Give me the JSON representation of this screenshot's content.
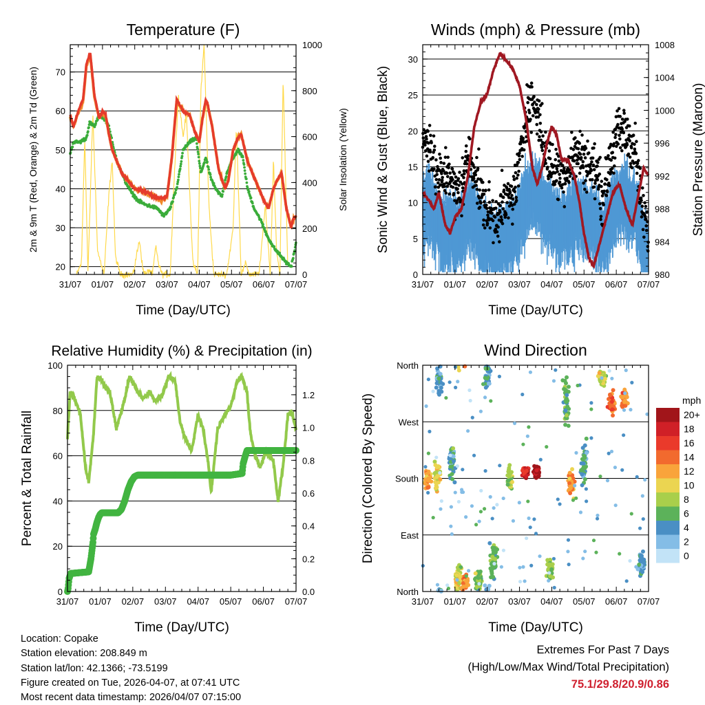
{
  "colors": {
    "temp2m": "#e53b2c",
    "temp9m": "#f08a2a",
    "dewpoint": "#3aac3a",
    "solar": "#ffd94a",
    "wind": "#4f98d4",
    "gust": "#000000",
    "pressure": "#a01822",
    "rh": "#92c94b",
    "rain": "#42b441",
    "extremes": "#cf1f2e"
  },
  "x_ticks": [
    "31/07",
    "01/07",
    "02/07",
    "03/07",
    "04/07",
    "05/07",
    "06/07",
    "07/07"
  ],
  "chart_data": [
    {
      "id": "temperature",
      "type": "line",
      "title": "Temperature (F)",
      "xlabel": "Time (Day/UTC)",
      "ylabel": "2m & 9m T (Red, Orange) & 2m Td (Green)",
      "y2label": "Solar Insolation (Yellow)",
      "xlim": [
        0,
        7
      ],
      "ylim": [
        18,
        77
      ],
      "yticks": [
        20,
        30,
        40,
        50,
        60,
        70
      ],
      "y2lim": [
        0,
        1000
      ],
      "y2ticks": [
        0,
        200,
        400,
        600,
        800,
        1000
      ],
      "series": [
        {
          "name": "2m T",
          "axis": "left",
          "x": [
            0,
            0.1,
            0.25,
            0.4,
            0.5,
            0.62,
            0.75,
            0.9,
            1.0,
            1.1,
            1.2,
            1.3,
            1.45,
            1.6,
            1.8,
            2.0,
            2.2,
            2.4,
            2.6,
            2.8,
            3.0,
            3.15,
            3.3,
            3.5,
            3.7,
            3.85,
            4.0,
            4.1,
            4.2,
            4.25,
            4.4,
            4.6,
            4.8,
            4.9,
            5.05,
            5.2,
            5.3,
            5.5,
            5.7,
            5.85,
            6.0,
            6.15,
            6.3,
            6.4,
            6.55,
            6.7,
            6.85,
            6.9,
            7.0
          ],
          "values": [
            59,
            56,
            60,
            63,
            72,
            75,
            64,
            58,
            60,
            59,
            54,
            50,
            47,
            44,
            42,
            40,
            39.5,
            39,
            38,
            37.5,
            38,
            48,
            63,
            60,
            59,
            55,
            52,
            58,
            63,
            62,
            56,
            45,
            40,
            42,
            50,
            53,
            54,
            47,
            43,
            40,
            37,
            35,
            40,
            42,
            44,
            35,
            30,
            32,
            33
          ]
        },
        {
          "name": "9m T",
          "axis": "left",
          "x": [
            0,
            0.1,
            0.25,
            0.4,
            0.5,
            0.62,
            0.75,
            0.9,
            1.0,
            1.1,
            1.2,
            1.3,
            1.45,
            1.6,
            1.8,
            2.0,
            2.2,
            2.4,
            2.6,
            2.8,
            3.0,
            3.15,
            3.3,
            3.5,
            3.7,
            3.85,
            4.0,
            4.1,
            4.2,
            4.25,
            4.4,
            4.6,
            4.8,
            4.9,
            5.05,
            5.2,
            5.3,
            5.5,
            5.7,
            5.85,
            6.0,
            6.15,
            6.3,
            6.4,
            6.55,
            6.7,
            6.85,
            6.9,
            7.0
          ],
          "values": [
            58.5,
            56,
            59.5,
            62.5,
            71.5,
            74.5,
            63.5,
            58,
            59.5,
            58.5,
            54,
            50,
            47,
            44,
            42,
            40,
            39.5,
            38.8,
            38,
            37,
            38,
            48,
            62.5,
            60,
            59,
            55,
            52,
            58,
            62.5,
            62,
            56,
            45,
            40,
            42,
            50,
            53,
            54,
            47,
            43,
            40,
            37,
            35,
            40,
            42,
            44,
            35,
            30,
            32,
            33
          ]
        },
        {
          "name": "2m Td",
          "axis": "left",
          "x": [
            0,
            0.1,
            0.3,
            0.5,
            0.6,
            0.75,
            0.9,
            1.05,
            1.2,
            1.35,
            1.5,
            1.7,
            1.9,
            2.1,
            2.3,
            2.5,
            2.7,
            2.9,
            3.1,
            3.3,
            3.5,
            3.7,
            3.9,
            4.05,
            4.2,
            4.35,
            4.5,
            4.7,
            4.85,
            5.0,
            5.2,
            5.35,
            5.5,
            5.7,
            5.9,
            6.1,
            6.3,
            6.5,
            6.7,
            6.85,
            7.0
          ],
          "values": [
            49,
            52,
            52,
            53,
            57,
            56,
            59,
            58,
            56,
            50,
            46,
            42,
            39,
            37,
            36,
            35.5,
            35,
            33,
            35,
            40,
            50,
            52,
            53,
            44,
            48,
            43,
            40,
            38,
            44,
            47,
            50,
            48,
            40,
            35,
            32,
            28,
            25,
            23,
            21,
            20,
            26
          ]
        },
        {
          "name": "Solar Insolation",
          "axis": "right",
          "x": [
            0.2,
            0.35,
            0.45,
            0.55,
            0.7,
            0.85,
            1.05,
            1.2,
            1.3,
            1.4,
            1.55,
            1.95,
            2.05,
            2.15,
            2.25,
            2.35,
            2.45,
            2.55,
            2.65,
            2.75,
            2.85,
            3.1,
            3.2,
            3.35,
            3.5,
            3.6,
            3.8,
            3.95,
            4.05,
            4.15,
            4.3,
            4.45,
            4.85,
            5.05,
            5.15,
            5.3,
            5.45,
            5.55,
            5.85,
            6.05,
            6.2,
            6.3,
            6.4,
            6.5,
            6.6,
            6.75
          ],
          "values": [
            0,
            50,
            600,
            0,
            700,
            100,
            0,
            350,
            500,
            80,
            0,
            0,
            80,
            150,
            20,
            0,
            20,
            0,
            120,
            40,
            0,
            0,
            350,
            780,
            600,
            700,
            50,
            0,
            800,
            1000,
            300,
            0,
            0,
            200,
            650,
            0,
            50,
            0,
            0,
            300,
            0,
            500,
            100,
            0,
            850,
            0
          ]
        }
      ]
    },
    {
      "id": "winds",
      "type": "scatter",
      "title": "Winds (mph) & Pressure (mb)",
      "xlabel": "Time (Day/UTC)",
      "ylabel": "Sonic Wind & Gust (Blue, Black)",
      "y2label": "Station Pressure (Maroon)",
      "xlim": [
        0,
        7
      ],
      "ylim": [
        0,
        32
      ],
      "yticks": [
        0,
        5,
        10,
        15,
        20,
        25,
        30
      ],
      "y2lim": [
        980,
        1008
      ],
      "y2ticks": [
        980,
        984,
        988,
        992,
        996,
        1000,
        1004,
        1008
      ],
      "series": [
        {
          "name": "Gust",
          "axis": "left",
          "x": [
            0,
            0.2,
            0.4,
            0.6,
            0.8,
            1.0,
            1.2,
            1.4,
            1.6,
            1.8,
            2.0,
            2.2,
            2.4,
            2.6,
            2.8,
            3.0,
            3.2,
            3.4,
            3.6,
            3.8,
            4.0,
            4.2,
            4.4,
            4.6,
            4.8,
            5.0,
            5.2,
            5.4,
            5.6,
            5.8,
            6.0,
            6.2,
            6.4,
            6.6,
            6.8,
            7.0
          ],
          "values": [
            18,
            19,
            14,
            13,
            15,
            11,
            12,
            16,
            15,
            11,
            9,
            8,
            9,
            10,
            11,
            15,
            23,
            24,
            22,
            17,
            15,
            14,
            14,
            16,
            17,
            16,
            15,
            14,
            10,
            16,
            19,
            20,
            19,
            17,
            9,
            6
          ]
        },
        {
          "name": "Sonic Wind",
          "axis": "left",
          "x": [
            0,
            0.2,
            0.4,
            0.6,
            0.8,
            1.0,
            1.2,
            1.4,
            1.6,
            1.8,
            2.0,
            2.2,
            2.4,
            2.6,
            2.8,
            3.0,
            3.2,
            3.4,
            3.6,
            3.8,
            4.0,
            4.2,
            4.4,
            4.6,
            4.8,
            5.0,
            5.2,
            5.4,
            5.6,
            5.8,
            6.0,
            6.2,
            6.4,
            6.6,
            6.8,
            7.0
          ],
          "values": [
            9,
            10,
            8,
            6,
            7,
            6,
            6,
            9,
            8,
            6,
            5,
            4,
            5,
            5,
            6,
            8,
            11,
            12,
            11,
            9,
            8,
            7,
            7,
            8,
            9,
            8,
            8,
            7,
            5,
            8,
            10,
            11,
            10,
            9,
            5,
            3
          ]
        },
        {
          "name": "Station Pressure",
          "axis": "right",
          "x": [
            0,
            0.2,
            0.35,
            0.5,
            0.7,
            0.85,
            1.0,
            1.2,
            1.4,
            1.6,
            1.8,
            2.0,
            2.2,
            2.4,
            2.6,
            2.8,
            3.0,
            3.2,
            3.4,
            3.55,
            3.7,
            3.85,
            4.0,
            4.15,
            4.3,
            4.5,
            4.7,
            4.85,
            5.0,
            5.15,
            5.3,
            5.5,
            5.7,
            5.9,
            6.1,
            6.3,
            6.5,
            6.7,
            6.85,
            7.0
          ],
          "values": [
            990,
            989,
            988,
            990,
            986,
            985,
            987,
            988,
            992,
            998,
            1001,
            1002,
            1005,
            1007,
            1006,
            1005,
            1003,
            999,
            993,
            991,
            993,
            996,
            998,
            997,
            994,
            994,
            992,
            989,
            985,
            982,
            981,
            984,
            987,
            990,
            991,
            988,
            986,
            990,
            993,
            992
          ]
        }
      ]
    },
    {
      "id": "humidity",
      "type": "line",
      "title": "Relative Humidity (%) & Precipitation (in)",
      "xlabel": "Time (Day/UTC)",
      "ylabel": "Percent & Total Rainfall",
      "xlim": [
        0,
        7
      ],
      "ylim": [
        0,
        100
      ],
      "yticks": [
        0,
        20,
        40,
        60,
        80,
        100
      ],
      "y2lim": [
        0,
        1.38
      ],
      "y2ticks": [
        0.0,
        0.2,
        0.4,
        0.6,
        0.8,
        1.0,
        1.2
      ],
      "series": [
        {
          "name": "Relative Humidity",
          "axis": "left",
          "x": [
            0,
            0.08,
            0.2,
            0.4,
            0.55,
            0.65,
            0.8,
            0.9,
            1.0,
            1.15,
            1.3,
            1.5,
            1.7,
            1.9,
            2.1,
            2.3,
            2.5,
            2.7,
            2.9,
            3.1,
            3.3,
            3.45,
            3.6,
            3.8,
            4.0,
            4.15,
            4.3,
            4.4,
            4.6,
            4.8,
            5.0,
            5.2,
            5.35,
            5.5,
            5.6,
            5.75,
            5.9,
            6.1,
            6.3,
            6.45,
            6.6,
            6.75,
            6.85,
            7.0
          ],
          "values": [
            68,
            88,
            86,
            78,
            55,
            48,
            70,
            94,
            95,
            90,
            88,
            72,
            82,
            95,
            90,
            85,
            88,
            84,
            87,
            95,
            93,
            75,
            68,
            62,
            78,
            72,
            58,
            44,
            72,
            78,
            82,
            93,
            95,
            88,
            70,
            60,
            55,
            62,
            58,
            40,
            55,
            78,
            80,
            72
          ]
        },
        {
          "name": "Total Rainfall",
          "axis": "right",
          "x": [
            0,
            0.02,
            0.05,
            0.1,
            0.65,
            0.72,
            0.78,
            0.8,
            0.85,
            0.9,
            0.95,
            1.0,
            1.05,
            1.1,
            1.55,
            1.65,
            1.75,
            1.85,
            1.95,
            2.05,
            2.15,
            5.0,
            5.35,
            5.38,
            5.45,
            5.5,
            7.0
          ],
          "values": [
            0,
            0.02,
            0.08,
            0.11,
            0.12,
            0.2,
            0.3,
            0.35,
            0.38,
            0.42,
            0.45,
            0.47,
            0.48,
            0.48,
            0.48,
            0.5,
            0.55,
            0.62,
            0.67,
            0.7,
            0.71,
            0.71,
            0.72,
            0.78,
            0.83,
            0.86,
            0.86
          ]
        }
      ]
    },
    {
      "id": "direction",
      "type": "scatter",
      "title": "Wind Direction",
      "xlabel": "Time (Day/UTC)",
      "ylabel": "Direction (Colored By Speed)",
      "xlim": [
        0,
        7
      ],
      "ylim": [
        0,
        360
      ],
      "ytick_values": [
        0,
        90,
        180,
        270,
        360
      ],
      "ytick_labels": [
        "North",
        "East",
        "South",
        "West",
        "North"
      ],
      "colorbar_unit": "mph",
      "colorbar_labels": [
        "20+",
        "18",
        "16",
        "14",
        "12",
        "10",
        "8",
        "6",
        "4",
        "2",
        "0"
      ],
      "colorbar_colors": [
        "#a1151a",
        "#d02027",
        "#ea3a2b",
        "#f26a2e",
        "#f9a43b",
        "#ebd551",
        "#a9cf4b",
        "#5cb25a",
        "#4a8fc4",
        "#84bde6",
        "#c2e3f7"
      ],
      "clusters": [
        {
          "t": 0.15,
          "dir": 180,
          "spread": 20,
          "speed": 12
        },
        {
          "t": 0.45,
          "dir": 185,
          "spread": 25,
          "speed": 10
        },
        {
          "t": 0.5,
          "dir": 340,
          "spread": 30,
          "speed": 4
        },
        {
          "t": 0.9,
          "dir": 205,
          "spread": 30,
          "speed": 5
        },
        {
          "t": 1.1,
          "dir": 20,
          "spread": 25,
          "speed": 9
        },
        {
          "t": 1.3,
          "dir": 12,
          "spread": 15,
          "speed": 13
        },
        {
          "t": 1.75,
          "dir": 15,
          "spread": 20,
          "speed": 7
        },
        {
          "t": 2.0,
          "dir": 345,
          "spread": 30,
          "speed": 4
        },
        {
          "t": 2.2,
          "dir": 50,
          "spread": 35,
          "speed": 6
        },
        {
          "t": 2.7,
          "dir": 180,
          "spread": 25,
          "speed": 8
        },
        {
          "t": 3.2,
          "dir": 190,
          "spread": 12,
          "speed": 18
        },
        {
          "t": 3.55,
          "dir": 190,
          "spread": 12,
          "speed": 19
        },
        {
          "t": 3.95,
          "dir": 35,
          "spread": 18,
          "speed": 7
        },
        {
          "t": 4.45,
          "dir": 300,
          "spread": 50,
          "speed": 6
        },
        {
          "t": 4.6,
          "dir": 170,
          "spread": 25,
          "speed": 12
        },
        {
          "t": 5.0,
          "dir": 210,
          "spread": 40,
          "speed": 5
        },
        {
          "t": 5.55,
          "dir": 340,
          "spread": 15,
          "speed": 9
        },
        {
          "t": 5.85,
          "dir": 300,
          "spread": 18,
          "speed": 14
        },
        {
          "t": 6.25,
          "dir": 305,
          "spread": 18,
          "speed": 13
        },
        {
          "t": 6.8,
          "dir": 40,
          "spread": 25,
          "speed": 4
        }
      ]
    }
  ],
  "info": {
    "location": "Location: Copake",
    "elevation": "Station elevation: 208.849 m",
    "latlon": "Station lat/lon: 42.1366; -73.5199",
    "created": "Figure created on Tue, 2026-04-07, at 07:41 UTC",
    "recent": "Most recent data timestamp: 2026/04/07 07:15:00"
  },
  "extremes": {
    "title": "Extremes For Past 7 Days",
    "subtitle": "(High/Low/Max Wind/Total Precipitation)",
    "values": "75.1/29.8/20.9/0.86"
  }
}
